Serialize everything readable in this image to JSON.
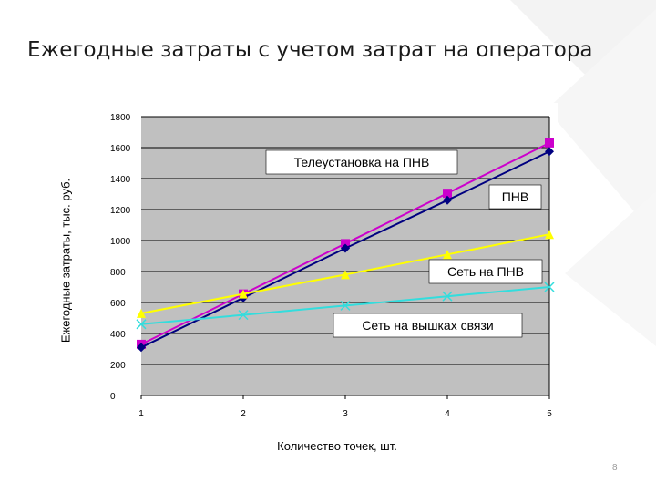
{
  "slide": {
    "title": "Ежегодные затраты с учетом затрат на оператора",
    "page_number": "8"
  },
  "chart_data": {
    "type": "line",
    "title": "",
    "xlabel": "Количество точек, шт.",
    "ylabel": "Ежегодные затраты, тыс. руб.",
    "categories": [
      1,
      2,
      3,
      4,
      5
    ],
    "ylim": [
      0,
      1800
    ],
    "yticks": [
      0,
      200,
      400,
      600,
      800,
      1000,
      1200,
      1400,
      1600,
      1800
    ],
    "grid": true,
    "plot_background": "#c0c0c0",
    "series": [
      {
        "name": "Телеустановка на ПНВ",
        "color": "#cc00cc",
        "marker": "square",
        "values": [
          330,
          655,
          980,
          1305,
          1630
        ]
      },
      {
        "name": "ПНВ",
        "color": "#000080",
        "marker": "diamond",
        "values": [
          310,
          630,
          950,
          1260,
          1575
        ]
      },
      {
        "name": "Сеть на ПНВ",
        "color": "#ffff00",
        "marker": "triangle",
        "values": [
          530,
          655,
          780,
          910,
          1040
        ]
      },
      {
        "name": "Сеть на вышках связи",
        "color": "#33dddd",
        "marker": "x",
        "values": [
          460,
          520,
          580,
          640,
          700
        ]
      }
    ]
  }
}
